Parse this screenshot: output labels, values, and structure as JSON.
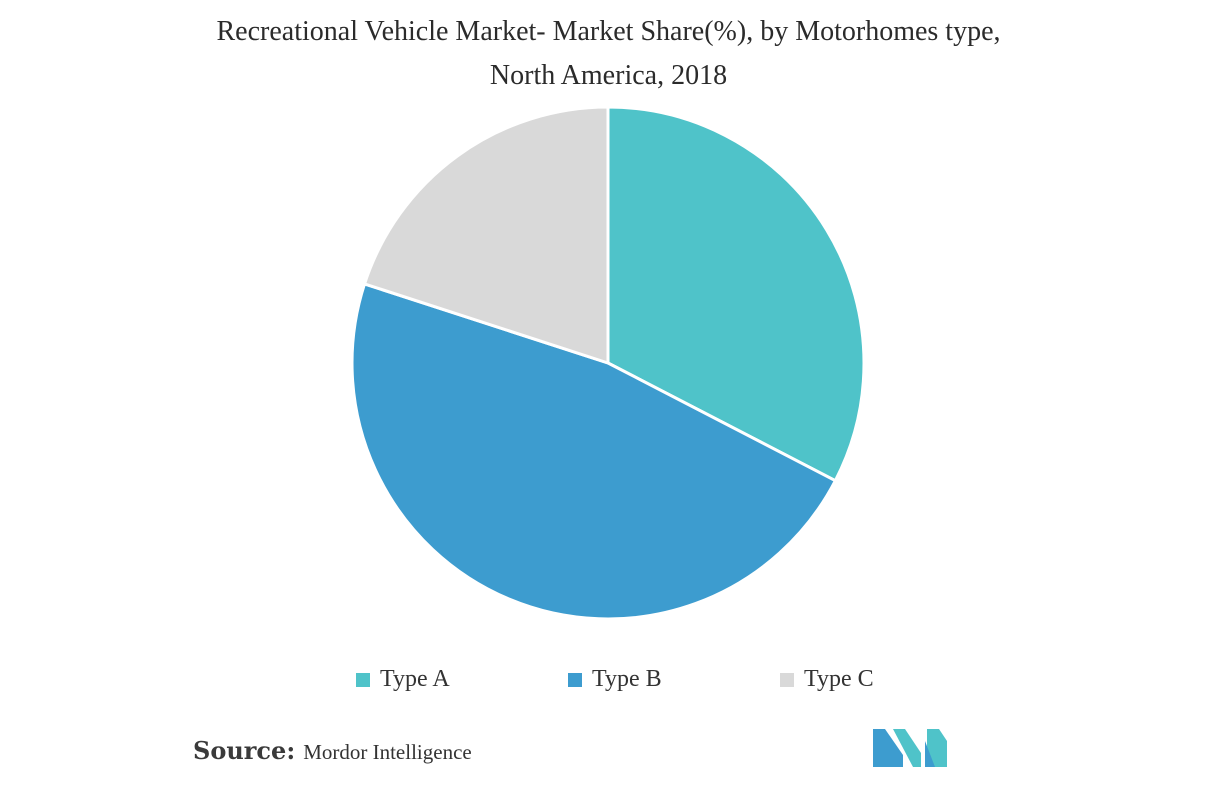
{
  "chart_data": {
    "type": "pie",
    "title_line1": "Recreational Vehicle Market- Market Share(%), by Motorhomes type,",
    "title_line2": "North America, 2018",
    "categories": [
      "Type A",
      "Type B",
      "Type C"
    ],
    "values": [
      32.6,
      47.4,
      20.0
    ],
    "colors": [
      "#4fc3c9",
      "#3d9ccf",
      "#d9d9d9"
    ],
    "legend_position": "bottom"
  },
  "source": {
    "label": "Source:",
    "text": "Mordor Intelligence"
  },
  "logo": {
    "icon": "mordor-intelligence-logo",
    "colors": [
      "#3d9ccf",
      "#4fc3c9"
    ]
  }
}
